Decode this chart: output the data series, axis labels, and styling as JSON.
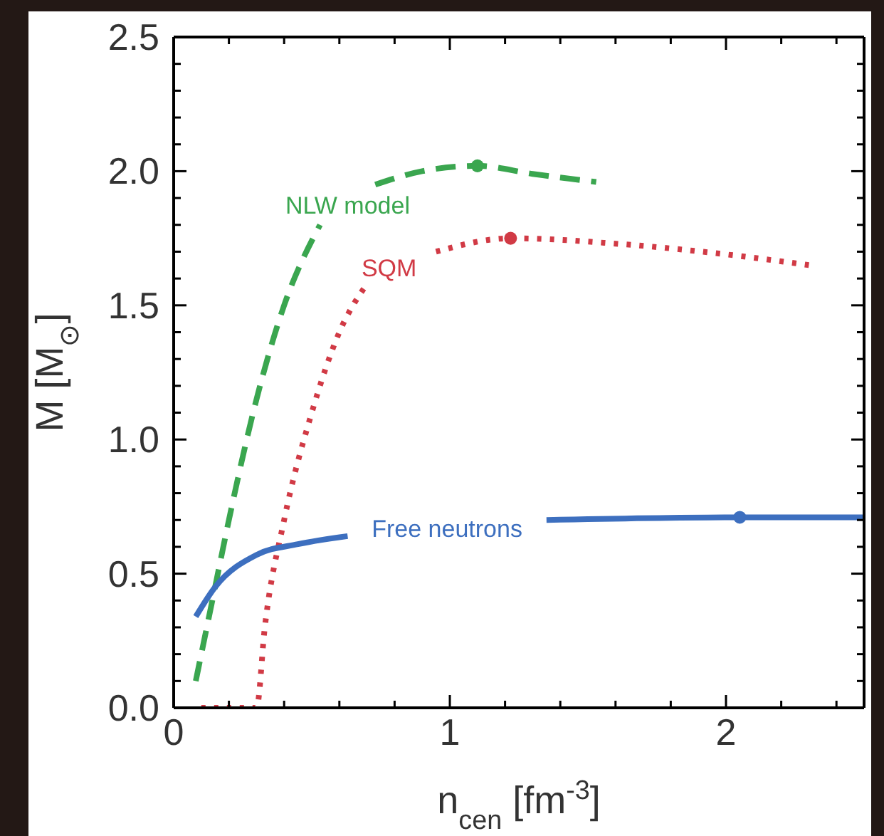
{
  "chart_data": {
    "type": "line",
    "xlabel": "n$_{cen}$ [fm$^{-3}$]",
    "ylabel": "M [M$_{⊙}$]",
    "xlim": [
      0,
      2.5
    ],
    "ylim": [
      0,
      2.5
    ],
    "xticks": [
      0,
      {
        "value": 0.2,
        "label": null
      },
      {
        "value": 0.4,
        "label": null
      },
      {
        "value": 0.6,
        "label": null
      },
      {
        "value": 0.8,
        "label": null
      },
      1,
      {
        "value": 1.2,
        "label": null
      },
      {
        "value": 1.4,
        "label": null
      },
      {
        "value": 1.6,
        "label": null
      },
      {
        "value": 1.8,
        "label": null
      },
      2,
      {
        "value": 2.2,
        "label": null
      },
      {
        "value": 2.4,
        "label": null
      }
    ],
    "yticks": [
      {
        "value": 0,
        "label": "0.0"
      },
      {
        "value": 0.1,
        "label": null
      },
      {
        "value": 0.2,
        "label": null
      },
      {
        "value": 0.3,
        "label": null
      },
      {
        "value": 0.4,
        "label": null
      },
      {
        "value": 0.5,
        "label": "0.5"
      },
      {
        "value": 0.6,
        "label": null
      },
      {
        "value": 0.7,
        "label": null
      },
      {
        "value": 0.8,
        "label": null
      },
      {
        "value": 0.9,
        "label": null
      },
      {
        "value": 1,
        "label": "1.0"
      },
      {
        "value": 1.1,
        "label": null
      },
      {
        "value": 1.2,
        "label": null
      },
      {
        "value": 1.3,
        "label": null
      },
      {
        "value": 1.4,
        "label": null
      },
      {
        "value": 1.5,
        "label": "1.5"
      },
      {
        "value": 1.6,
        "label": null
      },
      {
        "value": 1.7,
        "label": null
      },
      {
        "value": 1.8,
        "label": null
      },
      {
        "value": 1.9,
        "label": null
      },
      {
        "value": 2,
        "label": "2.0"
      },
      {
        "value": 2.1,
        "label": null
      },
      {
        "value": 2.2,
        "label": null
      },
      {
        "value": 2.3,
        "label": null
      },
      {
        "value": 2.4,
        "label": null
      },
      {
        "value": 2.5,
        "label": "2.5"
      }
    ],
    "series": [
      {
        "name": "NLW model",
        "color": "#3aa64f",
        "line_style": "dashed",
        "marker": "none",
        "x": [
          0.08,
          0.15,
          0.2,
          0.3,
          0.4,
          0.53,
          0.63,
          0.73,
          0.9,
          1.1,
          1.3,
          1.53
        ],
        "values": [
          0.1,
          0.45,
          0.7,
          1.15,
          1.5,
          1.8,
          null,
          1.95,
          2.0,
          2.02,
          1.99,
          1.96
        ]
      },
      {
        "name": "SQM",
        "color": "#d13a45",
        "line_style": "dotted",
        "marker": "none",
        "x": [
          0.1,
          0.3,
          0.33,
          0.4,
          0.5,
          0.6,
          0.7,
          0.78,
          0.95,
          1.22,
          1.6,
          2.0,
          2.3
        ],
        "values": [
          0,
          0,
          0.3,
          0.7,
          1.1,
          1.4,
          1.58,
          null,
          1.7,
          1.75,
          1.73,
          1.69,
          1.65
        ]
      },
      {
        "name": "Free neutrons",
        "color": "#3d6fbf",
        "line_style": "solid",
        "marker": "none",
        "x": [
          0.08,
          0.15,
          0.3,
          0.45,
          0.63,
          0.99,
          1.35,
          2.05,
          2.5
        ],
        "values": [
          0.34,
          0.45,
          0.57,
          0.61,
          0.64,
          null,
          0.7,
          0.71,
          0.71
        ]
      },
      {
        "type": "scatter",
        "color": "#3aa64f",
        "marker": "circle",
        "x": [
          1.1
        ],
        "values": [
          2.02
        ]
      },
      {
        "type": "scatter",
        "color": "#d13a45",
        "marker": "circle",
        "x": [
          1.22
        ],
        "values": [
          1.75
        ]
      },
      {
        "type": "scatter",
        "color": "#3d6fbf",
        "marker": "circle",
        "x": [
          2.05
        ],
        "values": [
          0.71
        ]
      }
    ]
  }
}
